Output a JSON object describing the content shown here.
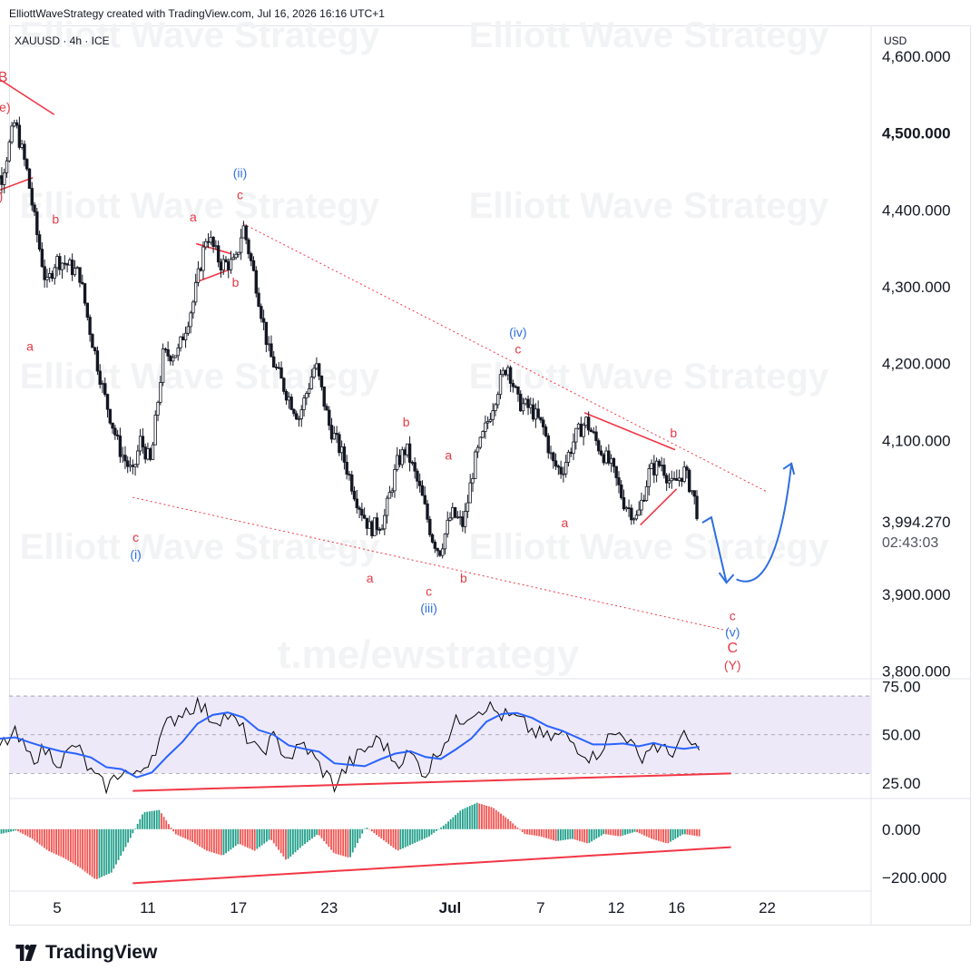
{
  "header": {
    "credit": "ElliottWaveStrategy created with TradingView.com, Jul 16, 2026 16:16 UTC+1",
    "symbol": "XAUUSD · 4h · ICE"
  },
  "watermarks": {
    "brand": "Elliott Wave Strategy",
    "channel": "t.me/ewstrategy"
  },
  "footer": {
    "brand": "TradingView"
  },
  "colors": {
    "wave_red": "#e53945",
    "wave_blue": "#2f6fe0",
    "rsi_line": "#000000",
    "rsi_ma": "#2962ff",
    "rsi_band": "#ede9f9",
    "hist_up": "#1f9e89",
    "hist_down": "#ef5350",
    "trendline": "#f23645"
  },
  "chart_data": [
    {
      "type": "candlestick",
      "title": "XAUUSD · 4h · ICE",
      "currency": "USD",
      "ylim": [
        3790,
        4640
      ],
      "y_ticks": [
        "4,600.000",
        "4,500.000",
        "4,400.000",
        "4,300.000",
        "4,200.000",
        "4,100.000",
        "3,900.000",
        "3,800.000"
      ],
      "last_price": "3,994.270",
      "countdown": "02:43:03",
      "x_ticks": [
        {
          "label": "5",
          "day": 5
        },
        {
          "label": "11",
          "day": 11
        },
        {
          "label": "17",
          "day": 17
        },
        {
          "label": "23",
          "day": 23
        },
        {
          "label": "Jul",
          "day": 31
        },
        {
          "label": "7",
          "day": 37
        },
        {
          "label": "12",
          "day": 42
        },
        {
          "label": "16",
          "day": 46
        },
        {
          "label": "22",
          "day": 52
        }
      ],
      "price_path": [
        {
          "day": 0.0,
          "price": 4470
        },
        {
          "day": 1.3,
          "price": 4440
        },
        {
          "day": 2.2,
          "price": 4515
        },
        {
          "day": 3.0,
          "price": 4450
        },
        {
          "day": 3.6,
          "price": 4375
        },
        {
          "day": 4.3,
          "price": 4300
        },
        {
          "day": 4.9,
          "price": 4335
        },
        {
          "day": 5.6,
          "price": 4330
        },
        {
          "day": 6.5,
          "price": 4315
        },
        {
          "day": 7.1,
          "price": 4250
        },
        {
          "day": 8.1,
          "price": 4160
        },
        {
          "day": 9.1,
          "price": 4090
        },
        {
          "day": 10.0,
          "price": 4055
        },
        {
          "day": 10.5,
          "price": 4100
        },
        {
          "day": 11.2,
          "price": 4070
        },
        {
          "day": 12.0,
          "price": 4210
        },
        {
          "day": 13.0,
          "price": 4215
        },
        {
          "day": 14.0,
          "price": 4280
        },
        {
          "day": 14.9,
          "price": 4370
        },
        {
          "day": 15.8,
          "price": 4330
        },
        {
          "day": 16.8,
          "price": 4330
        },
        {
          "day": 17.3,
          "price": 4380
        },
        {
          "day": 18.2,
          "price": 4300
        },
        {
          "day": 19.0,
          "price": 4215
        },
        {
          "day": 20.1,
          "price": 4165
        },
        {
          "day": 21.0,
          "price": 4130
        },
        {
          "day": 22.1,
          "price": 4200
        },
        {
          "day": 23.0,
          "price": 4120
        },
        {
          "day": 23.9,
          "price": 4080
        },
        {
          "day": 24.8,
          "price": 4025
        },
        {
          "day": 25.7,
          "price": 3985
        },
        {
          "day": 26.6,
          "price": 3995
        },
        {
          "day": 27.5,
          "price": 4070
        },
        {
          "day": 28.1,
          "price": 4090
        },
        {
          "day": 29.1,
          "price": 4030
        },
        {
          "day": 29.8,
          "price": 3975
        },
        {
          "day": 30.3,
          "price": 3955
        },
        {
          "day": 31.1,
          "price": 4005
        },
        {
          "day": 31.9,
          "price": 3990
        },
        {
          "day": 32.6,
          "price": 4070
        },
        {
          "day": 33.5,
          "price": 4125
        },
        {
          "day": 34.2,
          "price": 4170
        },
        {
          "day": 34.8,
          "price": 4200
        },
        {
          "day": 35.5,
          "price": 4150
        },
        {
          "day": 36.4,
          "price": 4140
        },
        {
          "day": 37.2,
          "price": 4115
        },
        {
          "day": 37.8,
          "price": 4070
        },
        {
          "day": 38.4,
          "price": 4060
        },
        {
          "day": 39.3,
          "price": 4105
        },
        {
          "day": 40.0,
          "price": 4125
        },
        {
          "day": 40.9,
          "price": 4090
        },
        {
          "day": 41.7,
          "price": 4065
        },
        {
          "day": 42.5,
          "price": 4020
        },
        {
          "day": 43.4,
          "price": 3998
        },
        {
          "day": 44.2,
          "price": 4060
        },
        {
          "day": 45.0,
          "price": 4070
        },
        {
          "day": 45.7,
          "price": 4040
        },
        {
          "day": 46.5,
          "price": 4060
        },
        {
          "day": 47.1,
          "price": 4030
        },
        {
          "day": 47.5,
          "price": 3994
        }
      ],
      "wave_labels": [
        {
          "text": "B",
          "day": 1.4,
          "price": 4567,
          "color": "red"
        },
        {
          "text": "(e)",
          "day": 1.4,
          "price": 4528,
          "color": "red"
        },
        {
          "text": "(d)",
          "day": 0.9,
          "price": 4412,
          "color": "red"
        },
        {
          "text": "b",
          "day": 4.9,
          "price": 4382,
          "color": "red"
        },
        {
          "text": "a",
          "day": 3.2,
          "price": 4217,
          "color": "red"
        },
        {
          "text": "c",
          "day": 10.2,
          "price": 3968,
          "color": "red"
        },
        {
          "text": "(i)",
          "day": 10.2,
          "price": 3946,
          "color": "blue"
        },
        {
          "text": "(ii)",
          "day": 17.1,
          "price": 4442,
          "color": "blue"
        },
        {
          "text": "c",
          "day": 17.1,
          "price": 4414,
          "color": "red"
        },
        {
          "text": "a",
          "day": 14.0,
          "price": 4385,
          "color": "red"
        },
        {
          "text": "b",
          "day": 16.8,
          "price": 4300,
          "color": "red"
        },
        {
          "text": "b",
          "day": 28.1,
          "price": 4118,
          "color": "red"
        },
        {
          "text": "a",
          "day": 25.7,
          "price": 3915,
          "color": "red"
        },
        {
          "text": "c",
          "day": 29.6,
          "price": 3898,
          "color": "red"
        },
        {
          "text": "(iii)",
          "day": 29.6,
          "price": 3876,
          "color": "blue"
        },
        {
          "text": "b",
          "day": 31.9,
          "price": 3915,
          "color": "red"
        },
        {
          "text": "a",
          "day": 30.9,
          "price": 4075,
          "color": "red"
        },
        {
          "text": "(iv)",
          "day": 35.5,
          "price": 4235,
          "color": "blue"
        },
        {
          "text": "c",
          "day": 35.5,
          "price": 4213,
          "color": "red"
        },
        {
          "text": "a",
          "day": 38.6,
          "price": 3987,
          "color": "red"
        },
        {
          "text": "b",
          "day": 45.8,
          "price": 4104,
          "color": "red"
        },
        {
          "text": "c",
          "day": 49.7,
          "price": 3866,
          "color": "red"
        },
        {
          "text": "(v)",
          "day": 49.7,
          "price": 3845,
          "color": "blue"
        },
        {
          "text": "C",
          "day": 49.7,
          "price": 3824,
          "color": "red"
        },
        {
          "text": "(Y)",
          "day": 49.7,
          "price": 3802,
          "color": "red"
        }
      ],
      "trendlines": [
        {
          "style": "dotted",
          "from": {
            "day": 17.3,
            "price": 4382
          },
          "to": {
            "day": 52.0,
            "price": 4033
          }
        },
        {
          "style": "dotted",
          "from": {
            "day": 10.0,
            "price": 4026
          },
          "to": {
            "day": 49.5,
            "price": 3852
          }
        },
        {
          "style": "solid",
          "from": {
            "day": 0.0,
            "price": 4585
          },
          "to": {
            "day": 4.8,
            "price": 4524
          }
        },
        {
          "style": "solid",
          "from": {
            "day": 0.0,
            "price": 4417
          },
          "to": {
            "day": 3.4,
            "price": 4442
          }
        },
        {
          "style": "solid",
          "from": {
            "day": 14.2,
            "price": 4356
          },
          "to": {
            "day": 16.5,
            "price": 4343
          }
        },
        {
          "style": "solid",
          "from": {
            "day": 14.2,
            "price": 4306
          },
          "to": {
            "day": 16.5,
            "price": 4323
          }
        },
        {
          "style": "solid",
          "from": {
            "day": 39.9,
            "price": 4136
          },
          "to": {
            "day": 45.9,
            "price": 4088
          }
        },
        {
          "style": "solid",
          "from": {
            "day": 43.6,
            "price": 3990
          },
          "to": {
            "day": 46.0,
            "price": 4037
          }
        }
      ],
      "forecast_path": [
        {
          "day": 47.7,
          "price": 3993
        },
        {
          "day": 48.3,
          "price": 4000
        },
        {
          "day": 49.3,
          "price": 3915
        },
        {
          "day": 50.8,
          "price": 3910
        },
        {
          "day": 53.6,
          "price": 4070
        }
      ]
    },
    {
      "type": "line",
      "title": "RSI",
      "ylim": [
        18,
        78
      ],
      "y_ticks": [
        "75.00",
        "50.00",
        "25.00"
      ],
      "band": [
        30,
        70
      ],
      "series": [
        {
          "values": [
            52,
            44,
            50,
            38,
            42,
            36,
            45,
            30,
            22,
            32,
            28,
            40,
            55,
            62,
            66,
            58,
            60,
            52,
            40,
            48,
            38,
            45,
            34,
            24,
            35,
            42,
            48,
            36,
            40,
            30,
            44,
            56,
            62,
            65,
            60,
            58,
            52,
            48,
            50,
            44,
            38,
            48,
            52,
            38,
            45,
            40,
            48,
            42
          ]
        }
      ],
      "trendline": {
        "from": {
          "day": 10.0,
          "price": 21
        },
        "to": {
          "day": 49.6,
          "price": 30
        }
      }
    },
    {
      "type": "bar",
      "title": "Momentum histogram",
      "ylim": [
        -250,
        120
      ],
      "y_ticks": [
        "0.000",
        "−200.000"
      ],
      "values": [
        -15,
        -20,
        -5,
        -40,
        -90,
        -120,
        -160,
        -210,
        -180,
        -60,
        70,
        80,
        -20,
        -50,
        -90,
        -110,
        -60,
        -90,
        -40,
        -130,
        -70,
        -20,
        -100,
        -120,
        10,
        -40,
        -90,
        -60,
        -30,
        20,
        80,
        110,
        90,
        40,
        -20,
        -30,
        -50,
        -40,
        -60,
        -20,
        -30,
        -10,
        -40,
        -60,
        -20,
        -30
      ],
      "trendline": {
        "from": {
          "day": 10.0,
          "price": -225
        },
        "to": {
          "day": 49.6,
          "price": -75
        }
      }
    }
  ]
}
